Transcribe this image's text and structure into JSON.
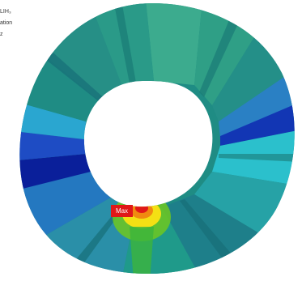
{
  "legend": {
    "line1": "LIH₃",
    "line2": "ation",
    "line3": "z"
  },
  "annotation": {
    "max_label": "Max"
  },
  "colors": {
    "max": "#e01818",
    "high": "#f4e014",
    "mid_high": "#6ec81e",
    "cyan": "#22c6d8",
    "teal": "#1f8c84",
    "light_teal": "#3cab8e",
    "blue": "#2a66c8",
    "dark_blue": "#0a1f9a"
  }
}
